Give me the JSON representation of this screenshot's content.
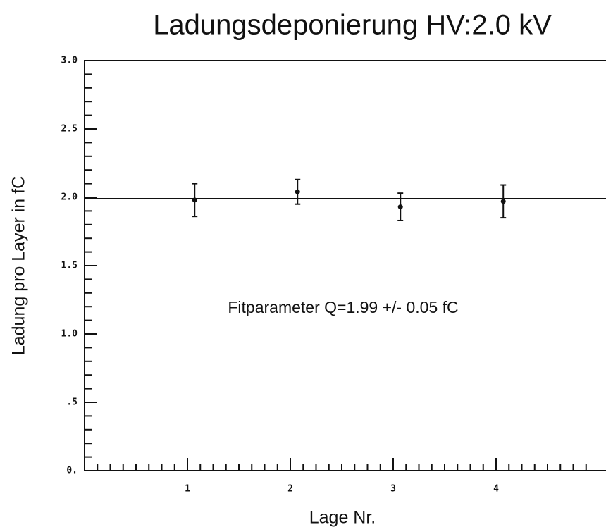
{
  "chart_data": {
    "type": "errorbar",
    "title": "Ladungsdeponierung HV:2.0 kV",
    "xlabel": "Lage Nr.",
    "ylabel": "Ladung pro Layer in fC",
    "annotation": "Fitparameter Q=1.99 +/- 0.05 fC",
    "x": [
      1.07,
      2.07,
      3.07,
      4.07
    ],
    "values": [
      1.98,
      2.04,
      1.93,
      1.97
    ],
    "errors": [
      0.12,
      0.09,
      0.1,
      0.12
    ],
    "fit_value": 1.99,
    "color": "#111111",
    "xlim": [
      0,
      5
    ],
    "ylim": [
      0,
      3
    ],
    "xticks": [
      1,
      2,
      3,
      4
    ],
    "yticks": [
      {
        "value": 0,
        "label": "0."
      },
      {
        "value": 0.5,
        "label": ".5"
      },
      {
        "value": 1,
        "label": "1.0"
      },
      {
        "value": 1.5,
        "label": "1.5"
      },
      {
        "value": 2,
        "label": "2.0"
      },
      {
        "value": 2.5,
        "label": "2.5"
      },
      {
        "value": 3,
        "label": "3.0"
      }
    ],
    "xminorticks": [
      0.125,
      0.25,
      0.375,
      0.5,
      0.625,
      0.75,
      0.875,
      1,
      1.125,
      1.25,
      1.375,
      1.5,
      1.625,
      1.75,
      1.875,
      2,
      2.125,
      2.25,
      2.375,
      2.5,
      2.625,
      2.75,
      2.875,
      3,
      3.125,
      3.25,
      3.375,
      3.5,
      3.625,
      3.75,
      3.875,
      4,
      4.125,
      4.25,
      4.375,
      4.5,
      4.625,
      4.75,
      4.875
    ],
    "yminorticks": [
      0.1,
      0.2,
      0.3,
      0.4,
      0.5,
      0.6,
      0.7,
      0.8,
      0.9,
      1,
      1.1,
      1.2,
      1.3,
      1.4,
      1.5,
      1.6,
      1.7,
      1.8,
      1.9,
      2,
      2.1,
      2.2,
      2.3,
      2.4,
      2.5,
      2.6,
      2.7,
      2.8,
      2.9
    ]
  }
}
